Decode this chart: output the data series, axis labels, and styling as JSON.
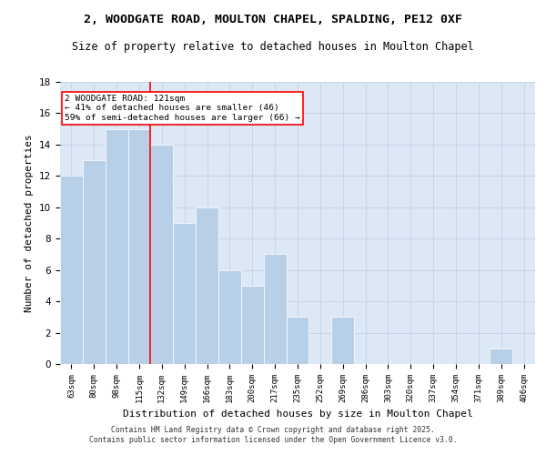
{
  "title1": "2, WOODGATE ROAD, MOULTON CHAPEL, SPALDING, PE12 0XF",
  "title2": "Size of property relative to detached houses in Moulton Chapel",
  "xlabel": "Distribution of detached houses by size in Moulton Chapel",
  "ylabel": "Number of detached properties",
  "categories": [
    "63sqm",
    "80sqm",
    "98sqm",
    "115sqm",
    "132sqm",
    "149sqm",
    "166sqm",
    "183sqm",
    "200sqm",
    "217sqm",
    "235sqm",
    "252sqm",
    "269sqm",
    "286sqm",
    "303sqm",
    "320sqm",
    "337sqm",
    "354sqm",
    "371sqm",
    "389sqm",
    "406sqm"
  ],
  "values": [
    12,
    13,
    15,
    15,
    14,
    9,
    10,
    6,
    5,
    7,
    3,
    0,
    3,
    0,
    0,
    0,
    0,
    0,
    0,
    1,
    0
  ],
  "bar_color": "#b8cfe8",
  "bar_edgecolor": "white",
  "grid_color": "#c8d4e8",
  "background_color": "#dce8f5",
  "fig_background": "#ffffff",
  "vline_x": 3.5,
  "vline_color": "red",
  "annotation_text": "2 WOODGATE ROAD: 121sqm\n← 41% of detached houses are smaller (46)\n59% of semi-detached houses are larger (66) →",
  "annotation_box_edgecolor": "red",
  "ylim": [
    0,
    18
  ],
  "yticks": [
    0,
    2,
    4,
    6,
    8,
    10,
    12,
    14,
    16,
    18
  ],
  "footer1": "Contains HM Land Registry data © Crown copyright and database right 2025.",
  "footer2": "Contains public sector information licensed under the Open Government Licence v3.0.",
  "title_fontsize": 9.5,
  "subtitle_fontsize": 8.5,
  "tick_fontsize": 6.5,
  "ylabel_fontsize": 8,
  "xlabel_fontsize": 8
}
